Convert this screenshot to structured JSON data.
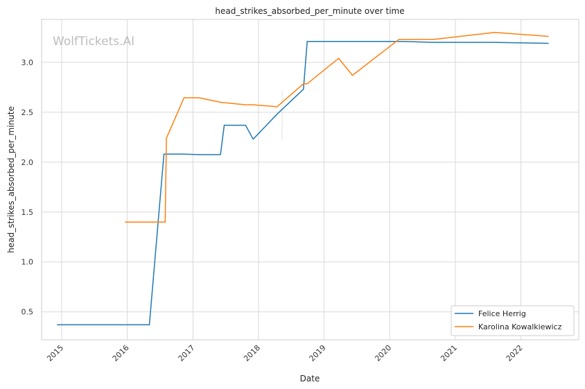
{
  "watermark": "WolfTickets.AI",
  "chart_data": {
    "type": "line",
    "title": "head_strikes_absorbed_per_minute over time",
    "xlabel": "Date",
    "ylabel": "head_strikes_absorbed_per_minute",
    "x_ticks": [
      "2015",
      "2016",
      "2017",
      "2018",
      "2019",
      "2020",
      "2021",
      "2022"
    ],
    "y_ticks": [
      0.5,
      1.0,
      1.5,
      2.0,
      2.5,
      3.0
    ],
    "xlim": [
      "2014-09-11",
      "2022-11-19"
    ],
    "ylim": [
      0.22,
      3.43
    ],
    "grid": true,
    "legend_position": "lower-right",
    "series": [
      {
        "name": "Felice Herrig",
        "color": "#1f77b4",
        "points": [
          [
            "2014-12-06",
            0.37
          ],
          [
            "2016-05-03",
            0.37
          ],
          [
            "2016-07-23",
            2.08
          ],
          [
            "2016-11-12",
            2.08
          ],
          [
            "2017-02-04",
            2.075
          ],
          [
            "2017-06-03",
            2.075
          ],
          [
            "2017-06-24",
            2.37
          ],
          [
            "2017-10-21",
            2.37
          ],
          [
            "2017-12-02",
            2.23
          ],
          [
            "2018-04-14",
            2.48
          ],
          [
            "2018-09-08",
            2.73
          ],
          [
            "2018-09-29",
            3.21
          ],
          [
            "2020-03-14",
            3.21
          ],
          [
            "2020-09-05",
            3.2
          ],
          [
            "2021-07-31",
            3.2
          ],
          [
            "2022-06-04",
            3.19
          ]
        ]
      },
      {
        "name": "Karolina Kowalkiewicz",
        "color": "#ff7f0e",
        "points": [
          [
            "2015-12-19",
            1.4
          ],
          [
            "2016-07-30",
            1.4
          ],
          [
            "2016-08-06",
            2.24
          ],
          [
            "2016-11-12",
            2.645
          ],
          [
            "2017-02-04",
            2.645
          ],
          [
            "2017-06-03",
            2.6
          ],
          [
            "2017-10-21",
            2.575
          ],
          [
            "2017-12-02",
            2.575
          ],
          [
            "2018-04-14",
            2.555
          ],
          [
            "2018-09-08",
            2.785
          ],
          [
            "2018-09-29",
            2.785
          ],
          [
            "2019-03-23",
            3.04
          ],
          [
            "2019-06-08",
            2.87
          ],
          [
            "2020-02-22",
            3.23
          ],
          [
            "2020-09-05",
            3.23
          ],
          [
            "2021-08-07",
            3.3
          ],
          [
            "2022-06-04",
            3.26
          ]
        ]
      }
    ]
  }
}
